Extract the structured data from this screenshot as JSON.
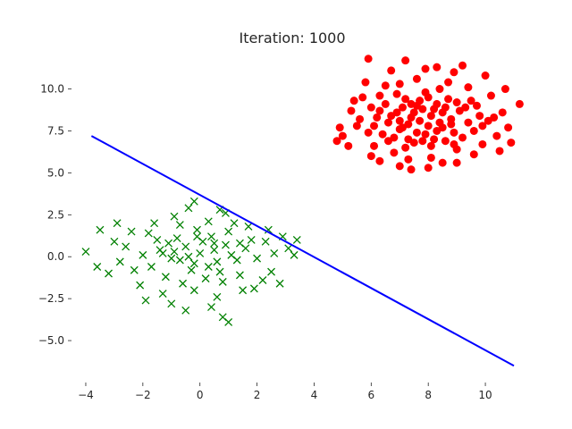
{
  "chart_data": {
    "type": "scatter",
    "title": "Iteration: 1000",
    "xlabel": "",
    "ylabel": "",
    "xlim": [
      -4.5,
      11.0
    ],
    "ylim": [
      -7.5,
      12.0
    ],
    "x_ticks": [
      -4,
      -2,
      0,
      2,
      4,
      6,
      8,
      10
    ],
    "x_tick_labels": [
      "−4",
      "−2",
      "0",
      "2",
      "4",
      "6",
      "8",
      "10"
    ],
    "y_ticks": [
      10.0,
      7.5,
      5.0,
      2.5,
      0.0,
      -2.5,
      -5.0
    ],
    "y_tick_labels": [
      "10.0",
      "7.5",
      "5.0",
      "2.5",
      "0.0",
      "−2.5",
      "−5.0"
    ],
    "grid": false,
    "legend": "none",
    "series": [
      {
        "marker": "circle",
        "color": "#ff0000",
        "points": [
          [
            6.9,
            8.6
          ],
          [
            7.3,
            7.9
          ],
          [
            8.1,
            8.4
          ],
          [
            7.6,
            9.0
          ],
          [
            8.5,
            7.7
          ],
          [
            7.0,
            7.6
          ],
          [
            8.8,
            8.2
          ],
          [
            7.9,
            7.3
          ],
          [
            6.6,
            8.0
          ],
          [
            8.3,
            9.1
          ],
          [
            7.4,
            8.3
          ],
          [
            9.1,
            8.7
          ],
          [
            7.8,
            8.8
          ],
          [
            6.3,
            8.7
          ],
          [
            8.6,
            6.9
          ],
          [
            7.2,
            9.4
          ],
          [
            8.9,
            7.4
          ],
          [
            6.8,
            7.1
          ],
          [
            7.7,
            8.1
          ],
          [
            8.2,
            7.0
          ],
          [
            9.4,
            8.0
          ],
          [
            6.1,
            7.8
          ],
          [
            7.5,
            6.8
          ],
          [
            8.0,
            9.5
          ],
          [
            9.0,
            9.2
          ],
          [
            6.5,
            9.1
          ],
          [
            8.4,
            8.0
          ],
          [
            7.1,
            8.9
          ],
          [
            9.6,
            7.5
          ],
          [
            7.9,
            9.8
          ],
          [
            6.4,
            7.3
          ],
          [
            8.7,
            9.4
          ],
          [
            7.3,
            7.0
          ],
          [
            8.1,
            6.6
          ],
          [
            9.3,
            8.9
          ],
          [
            6.9,
            9.7
          ],
          [
            7.6,
            7.4
          ],
          [
            8.5,
            8.6
          ],
          [
            6.7,
            8.4
          ],
          [
            9.8,
            8.4
          ],
          [
            7.2,
            6.5
          ],
          [
            8.0,
            7.8
          ],
          [
            7.0,
            8.1
          ],
          [
            8.8,
            7.9
          ],
          [
            7.4,
            9.1
          ],
          [
            9.2,
            7.1
          ],
          [
            6.2,
            8.3
          ],
          [
            8.3,
            7.5
          ],
          [
            7.8,
            6.9
          ],
          [
            8.6,
            8.9
          ],
          [
            9.5,
            9.3
          ],
          [
            6.6,
            6.9
          ],
          [
            7.7,
            9.3
          ],
          [
            8.9,
            6.7
          ],
          [
            7.1,
            7.7
          ],
          [
            9.9,
            7.8
          ],
          [
            6.0,
            8.9
          ],
          [
            8.2,
            8.8
          ],
          [
            7.5,
            8.6
          ],
          [
            9.7,
            9.0
          ],
          [
            5.6,
            8.2
          ],
          [
            6.3,
            9.6
          ],
          [
            8.4,
            10.0
          ],
          [
            10.1,
            8.1
          ],
          [
            7.0,
            10.3
          ],
          [
            9.0,
            6.4
          ],
          [
            6.8,
            6.2
          ],
          [
            8.7,
            10.4
          ],
          [
            10.4,
            7.2
          ],
          [
            5.9,
            7.4
          ],
          [
            7.6,
            10.6
          ],
          [
            9.4,
            10.1
          ],
          [
            6.5,
            10.2
          ],
          [
            10.6,
            8.6
          ],
          [
            8.1,
            5.9
          ],
          [
            5.3,
            8.7
          ],
          [
            7.3,
            5.8
          ],
          [
            9.9,
            6.7
          ],
          [
            6.1,
            6.6
          ],
          [
            10.2,
            9.6
          ],
          [
            8.9,
            11.0
          ],
          [
            5.5,
            7.8
          ],
          [
            7.9,
            11.2
          ],
          [
            10.8,
            7.7
          ],
          [
            6.7,
            11.1
          ],
          [
            9.6,
            6.1
          ],
          [
            5.0,
            7.2
          ],
          [
            8.5,
            5.6
          ],
          [
            11.2,
            9.1
          ],
          [
            4.9,
            7.7
          ],
          [
            7.0,
            5.4
          ],
          [
            10.5,
            6.3
          ],
          [
            5.8,
            10.4
          ],
          [
            6.0,
            6.0
          ],
          [
            8.0,
            5.3
          ],
          [
            9.0,
            5.6
          ],
          [
            10.0,
            10.8
          ],
          [
            5.7,
            9.5
          ],
          [
            10.9,
            6.8
          ],
          [
            6.3,
            5.7
          ],
          [
            5.9,
            11.8
          ],
          [
            7.4,
            5.2
          ],
          [
            10.3,
            8.3
          ],
          [
            5.2,
            6.6
          ],
          [
            9.2,
            11.4
          ],
          [
            8.3,
            11.3
          ],
          [
            5.4,
            9.3
          ],
          [
            10.7,
            10.0
          ],
          [
            4.8,
            6.9
          ],
          [
            7.2,
            11.7
          ]
        ]
      },
      {
        "marker": "x",
        "color": "#008000",
        "points": [
          [
            0.0,
            0.2
          ],
          [
            -0.5,
            0.6
          ],
          [
            0.6,
            -0.3
          ],
          [
            -1.0,
            -0.1
          ],
          [
            0.9,
            0.7
          ],
          [
            -0.3,
            -0.8
          ],
          [
            0.4,
            1.2
          ],
          [
            -1.4,
            0.4
          ],
          [
            1.3,
            -0.2
          ],
          [
            -0.8,
            1.1
          ],
          [
            0.2,
            -1.3
          ],
          [
            -1.7,
            -0.6
          ],
          [
            1.6,
            0.5
          ],
          [
            -0.1,
            1.6
          ],
          [
            0.7,
            -0.9
          ],
          [
            -1.2,
            -1.2
          ],
          [
            1.0,
            1.5
          ],
          [
            -2.0,
            0.1
          ],
          [
            2.0,
            -0.1
          ],
          [
            -0.6,
            -1.6
          ],
          [
            0.1,
            0.9
          ],
          [
            -0.9,
            0.3
          ],
          [
            1.1,
            0.1
          ],
          [
            -0.4,
            0.0
          ],
          [
            0.5,
            0.4
          ],
          [
            -1.5,
            1.0
          ],
          [
            1.8,
            1.0
          ],
          [
            -0.2,
            -0.4
          ],
          [
            0.8,
            -1.5
          ],
          [
            -1.1,
            0.8
          ],
          [
            -2.3,
            -0.8
          ],
          [
            2.3,
            0.9
          ],
          [
            -0.7,
            1.9
          ],
          [
            1.4,
            -1.1
          ],
          [
            -1.8,
            1.4
          ],
          [
            0.3,
            2.1
          ],
          [
            -0.2,
            -2.0
          ],
          [
            2.6,
            0.2
          ],
          [
            -2.6,
            0.6
          ],
          [
            1.2,
            2.0
          ],
          [
            -1.3,
            -2.2
          ],
          [
            0.6,
            -2.4
          ],
          [
            -2.1,
            -1.7
          ],
          [
            2.2,
            -1.4
          ],
          [
            -0.9,
            2.4
          ],
          [
            1.7,
            1.8
          ],
          [
            -1.6,
            2.0
          ],
          [
            0.9,
            2.6
          ],
          [
            -0.4,
            2.9
          ],
          [
            2.9,
            1.2
          ],
          [
            -2.8,
            -0.3
          ],
          [
            1.5,
            -2.0
          ],
          [
            -3.0,
            0.9
          ],
          [
            2.5,
            -0.9
          ],
          [
            -1.9,
            -2.6
          ],
          [
            0.4,
            -3.0
          ],
          [
            -0.5,
            -3.2
          ],
          [
            3.1,
            0.5
          ],
          [
            -3.5,
            1.6
          ],
          [
            -4.0,
            0.3
          ],
          [
            -3.6,
            -0.6
          ],
          [
            -2.9,
            2.0
          ],
          [
            3.4,
            1.0
          ],
          [
            3.3,
            0.1
          ],
          [
            2.8,
            -1.6
          ],
          [
            0.8,
            -3.6
          ],
          [
            1.0,
            -3.9
          ],
          [
            0.7,
            2.8
          ],
          [
            -0.2,
            3.3
          ],
          [
            1.9,
            -1.9
          ],
          [
            -1.0,
            -2.8
          ],
          [
            -2.4,
            1.5
          ],
          [
            2.4,
            1.6
          ],
          [
            -3.2,
            -1.0
          ],
          [
            -0.1,
            1.2
          ],
          [
            0.3,
            -0.6
          ],
          [
            -0.7,
            -0.2
          ],
          [
            0.5,
            0.8
          ],
          [
            -1.3,
            0.2
          ],
          [
            1.4,
            0.8
          ]
        ]
      }
    ],
    "lines": [
      {
        "color": "#0000ff",
        "x": [
          -3.8,
          11.0
        ],
        "y": [
          7.2,
          -6.5
        ]
      }
    ]
  }
}
